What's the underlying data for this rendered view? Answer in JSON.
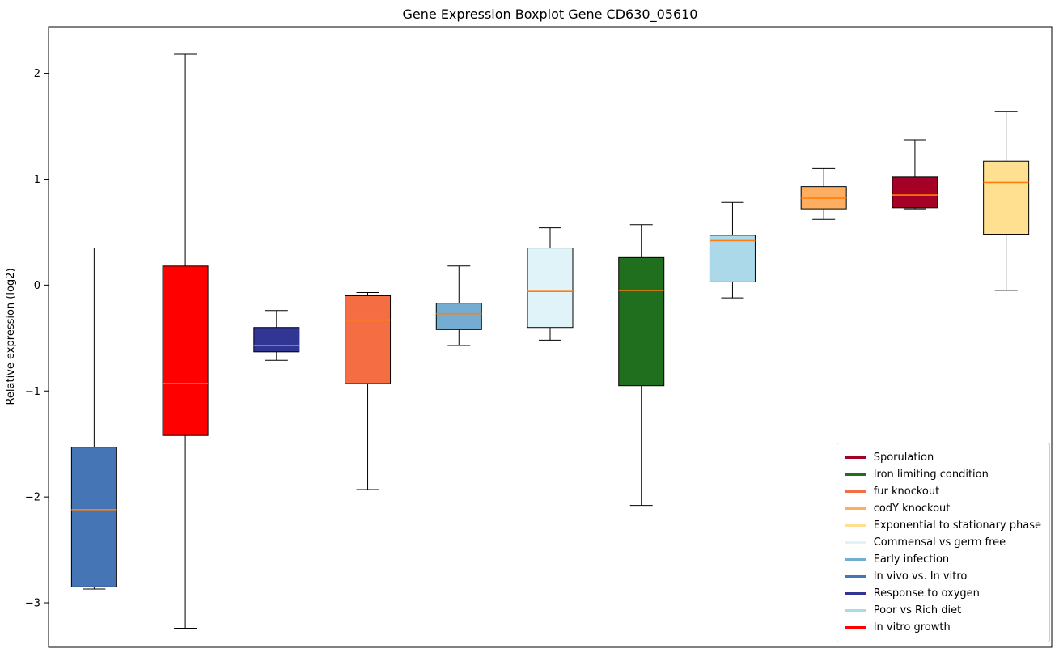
{
  "figure": {
    "title": "Gene Expression Boxplot Gene CD630_05610",
    "ylabel": "Relative expression (log2)"
  },
  "chart_data": {
    "type": "boxplot",
    "title": "Gene Expression Boxplot Gene CD630_05610",
    "xlabel": "",
    "ylabel": "Relative expression (log2)",
    "ylim": [
      -3.42,
      2.44
    ],
    "yticks": [
      2,
      1,
      0,
      -1,
      -2,
      -3
    ],
    "grid": false,
    "median_color": "#ff7f0e",
    "box_edge_color": "#000000",
    "whisker_color": "#000000",
    "legend_position": "lower right",
    "groups": [
      {
        "label": "In vivo vs. In vitro",
        "color": "#4575b4",
        "whisker_low": -2.87,
        "q1": -2.85,
        "median": -2.12,
        "q3": -1.53,
        "whisker_high": 0.35
      },
      {
        "label": "In vitro growth",
        "color": "#ff0000",
        "whisker_low": -3.24,
        "q1": -1.42,
        "median": -0.93,
        "q3": 0.18,
        "whisker_high": 2.18
      },
      {
        "label": "Response to oxygen",
        "color": "#313695",
        "whisker_low": -0.71,
        "q1": -0.63,
        "median": -0.57,
        "q3": -0.4,
        "whisker_high": -0.24
      },
      {
        "label": "fur knockout",
        "color": "#f46d43",
        "whisker_low": -1.93,
        "q1": -0.93,
        "median": -0.33,
        "q3": -0.1,
        "whisker_high": -0.07
      },
      {
        "label": "Early infection",
        "color": "#74add1",
        "whisker_low": -0.57,
        "q1": -0.42,
        "median": -0.27,
        "q3": -0.17,
        "whisker_high": 0.18
      },
      {
        "label": "Commensal vs germ free",
        "color": "#e0f3f8",
        "whisker_low": -0.52,
        "q1": -0.4,
        "median": -0.06,
        "q3": 0.35,
        "whisker_high": 0.54
      },
      {
        "label": "Iron limiting condition",
        "color": "#1f6f1f",
        "whisker_low": -2.08,
        "q1": -0.95,
        "median": -0.05,
        "q3": 0.26,
        "whisker_high": 0.57
      },
      {
        "label": "Poor vs Rich diet",
        "color": "#abd9e9",
        "whisker_low": -0.12,
        "q1": 0.03,
        "median": 0.42,
        "q3": 0.47,
        "whisker_high": 0.78
      },
      {
        "label": "codY knockout",
        "color": "#fdae61",
        "whisker_low": 0.62,
        "q1": 0.72,
        "median": 0.82,
        "q3": 0.93,
        "whisker_high": 1.1
      },
      {
        "label": "Sporulation",
        "color": "#a50026",
        "whisker_low": 0.72,
        "q1": 0.73,
        "median": 0.85,
        "q3": 1.02,
        "whisker_high": 1.37
      },
      {
        "label": "Exponential to stationary phase",
        "color": "#fee090",
        "whisker_low": -0.05,
        "q1": 0.48,
        "median": 0.97,
        "q3": 1.17,
        "whisker_high": 1.64
      }
    ],
    "legend": [
      {
        "label": "Sporulation",
        "color": "#a50026"
      },
      {
        "label": "Iron limiting condition",
        "color": "#1f6f1f"
      },
      {
        "label": "fur knockout",
        "color": "#f46d43"
      },
      {
        "label": "codY knockout",
        "color": "#fdae61"
      },
      {
        "label": "Exponential to stationary phase",
        "color": "#fee090"
      },
      {
        "label": "Commensal vs germ free",
        "color": "#e0f3f8"
      },
      {
        "label": "Early infection",
        "color": "#74add1"
      },
      {
        "label": "In vivo vs. In vitro",
        "color": "#4575b4"
      },
      {
        "label": "Response to oxygen",
        "color": "#313695"
      },
      {
        "label": "Poor vs Rich diet",
        "color": "#abd9e9"
      },
      {
        "label": "In vitro growth",
        "color": "#ff0000"
      }
    ]
  }
}
